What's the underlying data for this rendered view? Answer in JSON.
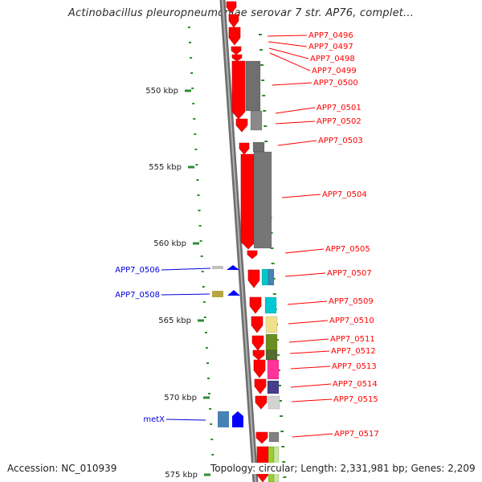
{
  "title": "Actinobacillus pleuropneumoniae serovar 7 str. AP76, complet...",
  "footer": {
    "accession": "Accession: NC_010939",
    "summary": "Topology: circular; Length: 2,331,981 bp; Genes: 2,209"
  },
  "colors": {
    "forward_gene": "#ff0000",
    "reverse_gene": "#0000dd",
    "backbone": "#808080",
    "tick": "#2e8b2e"
  },
  "scale_labels": [
    "550 kbp",
    "555 kbp",
    "560 kbp",
    "565 kbp",
    "570 kbp",
    "575 kbp"
  ],
  "forward_genes": [
    "APP7_0496",
    "APP7_0497",
    "APP7_0498",
    "APP7_0499",
    "APP7_0500",
    "APP7_0501",
    "APP7_0502",
    "APP7_0503",
    "APP7_0504",
    "APP7_0505",
    "APP7_0507",
    "APP7_0509",
    "APP7_0510",
    "APP7_0511",
    "APP7_0512",
    "APP7_0513",
    "APP7_0514",
    "APP7_0515",
    "APP7_0517"
  ],
  "reverse_genes": [
    "APP7_0506",
    "APP7_0508",
    "metX"
  ]
}
